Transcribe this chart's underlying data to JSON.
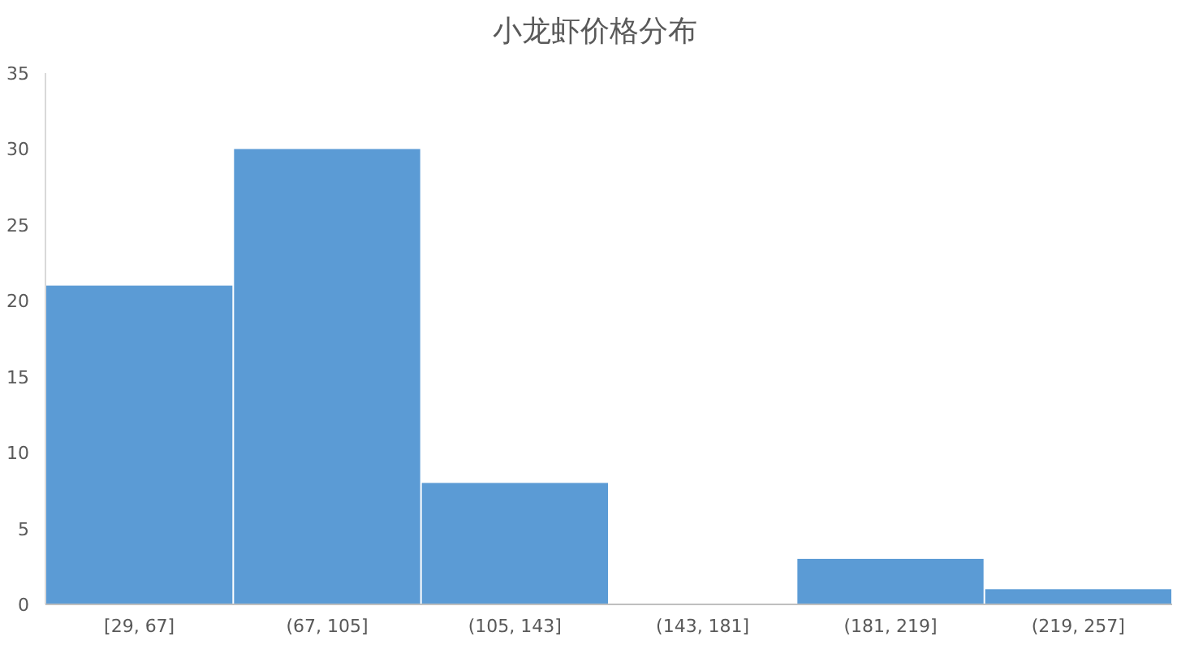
{
  "chart_data": {
    "type": "bar",
    "title": "小龙虾价格分布",
    "categories": [
      "[29, 67]",
      "(67, 105]",
      "(105, 143]",
      "(143, 181]",
      "(181, 219]",
      "(219, 257]"
    ],
    "values": [
      21,
      30,
      8,
      0,
      3,
      1
    ],
    "color": "#5b9bd5",
    "ylim": [
      0,
      35
    ],
    "yticks": [
      0,
      5,
      10,
      15,
      20,
      25,
      30,
      35
    ]
  }
}
